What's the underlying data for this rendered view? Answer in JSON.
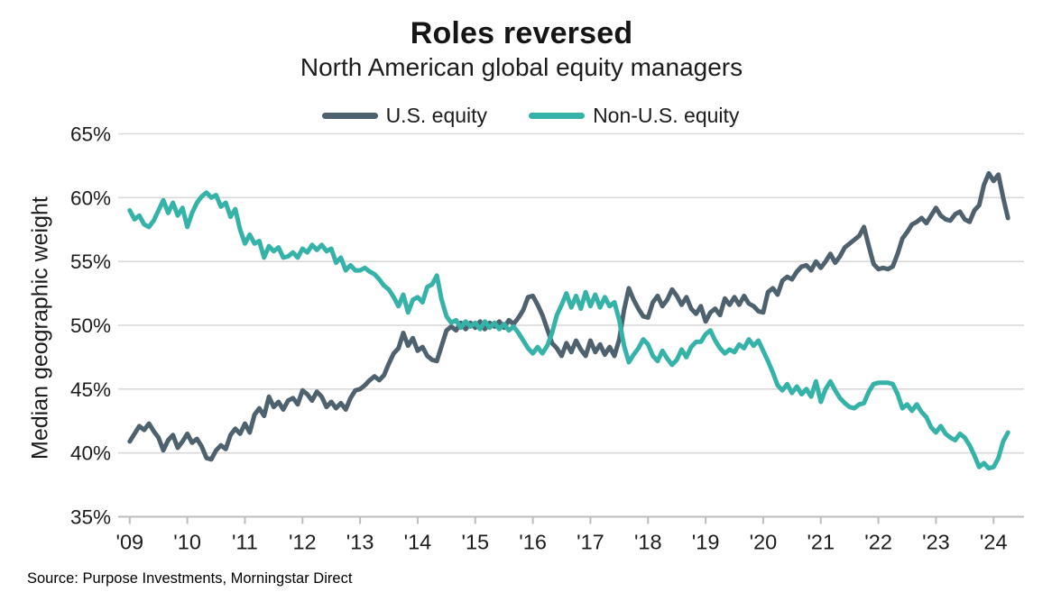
{
  "header": {
    "title": "Roles reversed",
    "subtitle": "North American global equity managers"
  },
  "legend": [
    {
      "label": "U.S. equity",
      "color": "#4e616e"
    },
    {
      "label": "Non-U.S. equity",
      "color": "#35b3a9"
    }
  ],
  "axes": {
    "y_label": "Median geographic weight",
    "y_ticks": [
      "65%",
      "60%",
      "55%",
      "50%",
      "45%",
      "40%",
      "35%"
    ],
    "x_ticks": [
      "'09",
      "'10",
      "'11",
      "'12",
      "'13",
      "'14",
      "'15",
      "'16",
      "'17",
      "'18",
      "'19",
      "'20",
      "'21",
      "'22",
      "'23",
      "'24"
    ]
  },
  "source": "Source: Purpose Investments, Morningstar Direct",
  "colors": {
    "us_equity": "#4e616e",
    "non_us_equity": "#35b3a9",
    "gridline": "#d9d9d9",
    "axis": "#bdbdbd"
  },
  "chart_data": {
    "type": "line",
    "title": "Roles reversed",
    "subtitle": "North American global equity managers",
    "xlabel": "",
    "ylabel": "Median geographic weight",
    "ylim": [
      35,
      65
    ],
    "y_tick_step": 5,
    "grid": "horizontal",
    "legend_position": "top",
    "x_start_year": 2009,
    "frequency": "monthly",
    "x_end_year": 2024.25,
    "x_tick_labels": [
      "'09",
      "'10",
      "'11",
      "'12",
      "'13",
      "'14",
      "'15",
      "'16",
      "'17",
      "'18",
      "'19",
      "'20",
      "'21",
      "'22",
      "'23",
      "'24"
    ],
    "units": "percent",
    "series": [
      {
        "name": "U.S. equity",
        "color": "#4e616e",
        "values": [
          40.9,
          41.5,
          42.1,
          41.8,
          42.3,
          41.7,
          41.2,
          40.2,
          41.0,
          41.4,
          40.4,
          40.9,
          41.5,
          40.8,
          41.1,
          40.5,
          39.6,
          39.5,
          40.2,
          40.6,
          40.3,
          41.4,
          41.9,
          41.5,
          42.3,
          41.6,
          43.0,
          43.5,
          42.9,
          44.4,
          43.6,
          44.0,
          43.4,
          44.1,
          44.3,
          43.8,
          44.9,
          44.6,
          44.1,
          44.8,
          44.4,
          43.6,
          44.0,
          43.5,
          43.9,
          43.4,
          44.3,
          44.9,
          45.0,
          45.3,
          45.7,
          46.0,
          45.7,
          46.1,
          47.0,
          47.8,
          48.2,
          49.4,
          48.4,
          49.0,
          48.0,
          48.3,
          47.6,
          47.3,
          47.2,
          48.4,
          49.6,
          49.9,
          49.6,
          50.2,
          49.7,
          50.2,
          49.8,
          50.3,
          49.7,
          50.2,
          49.9,
          50.3,
          49.8,
          50.4,
          50.1,
          50.6,
          51.2,
          52.2,
          52.3,
          51.6,
          50.8,
          49.7,
          48.6,
          48.2,
          47.6,
          48.6,
          47.9,
          48.8,
          48.1,
          47.6,
          48.8,
          47.9,
          48.5,
          47.7,
          48.3,
          47.6,
          48.9,
          51.2,
          52.9,
          52.0,
          51.3,
          50.7,
          50.6,
          51.8,
          52.3,
          51.5,
          52.0,
          52.8,
          52.3,
          51.6,
          52.2,
          51.3,
          50.9,
          51.5,
          50.3,
          51.0,
          51.3,
          50.8,
          52.1,
          51.6,
          52.2,
          51.6,
          52.3,
          51.7,
          51.5,
          51.1,
          51.0,
          52.6,
          52.9,
          52.4,
          53.5,
          53.8,
          53.6,
          54.2,
          54.6,
          54.7,
          54.3,
          55.0,
          54.5,
          55.0,
          55.6,
          54.9,
          55.4,
          56.1,
          56.4,
          56.7,
          57.0,
          57.7,
          56.2,
          54.8,
          54.4,
          54.5,
          54.4,
          54.6,
          55.6,
          56.8,
          57.3,
          57.9,
          58.1,
          58.4,
          58.0,
          58.6,
          59.2,
          58.6,
          58.3,
          58.2,
          58.7,
          58.9,
          58.3,
          58.1,
          59.0,
          59.4,
          61.0,
          61.9,
          61.3,
          61.8,
          60.0,
          58.4
        ]
      },
      {
        "name": "Non-U.S. equity",
        "color": "#35b3a9",
        "values": [
          59.0,
          58.3,
          58.6,
          57.9,
          57.7,
          58.2,
          59.0,
          59.8,
          58.8,
          59.6,
          58.6,
          59.2,
          57.7,
          58.8,
          59.6,
          60.1,
          60.4,
          60.0,
          60.2,
          59.3,
          59.6,
          58.5,
          59.1,
          57.5,
          56.4,
          57.1,
          56.4,
          56.6,
          55.3,
          56.2,
          55.8,
          56.1,
          55.3,
          55.4,
          55.7,
          55.3,
          56.0,
          55.7,
          56.3,
          55.9,
          56.3,
          55.8,
          56.0,
          54.9,
          55.3,
          54.3,
          54.7,
          54.3,
          54.3,
          54.5,
          54.2,
          54.0,
          53.6,
          53.1,
          52.8,
          52.2,
          51.5,
          52.4,
          51.0,
          52.0,
          52.2,
          51.8,
          53.0,
          53.2,
          53.9,
          52.0,
          50.7,
          50.2,
          50.4,
          49.8,
          50.3,
          49.9,
          50.2,
          49.7,
          50.3,
          49.8,
          50.2,
          49.7,
          50.1,
          49.6,
          49.9,
          49.4,
          48.8,
          48.2,
          47.8,
          48.3,
          47.8,
          48.4,
          49.4,
          50.8,
          51.6,
          52.5,
          51.4,
          52.3,
          51.3,
          52.6,
          51.5,
          52.4,
          51.4,
          52.2,
          51.5,
          51.8,
          50.4,
          48.4,
          47.1,
          47.7,
          48.2,
          48.9,
          48.5,
          47.6,
          47.2,
          48.0,
          47.4,
          46.9,
          47.3,
          48.1,
          47.5,
          48.3,
          48.7,
          48.7,
          49.3,
          49.6,
          48.8,
          48.2,
          47.8,
          48.1,
          47.9,
          48.5,
          48.2,
          48.9,
          48.4,
          48.8,
          48.0,
          47.2,
          46.3,
          45.3,
          44.9,
          45.4,
          44.7,
          45.2,
          44.6,
          45.0,
          44.4,
          45.6,
          44.0,
          45.0,
          45.6,
          44.9,
          44.3,
          43.9,
          43.6,
          43.5,
          43.8,
          43.9,
          44.8,
          45.4,
          45.5,
          45.5,
          45.5,
          45.4,
          44.6,
          43.5,
          43.8,
          43.3,
          43.8,
          43.2,
          42.8,
          42.0,
          41.6,
          42.1,
          41.5,
          41.2,
          41.0,
          41.5,
          41.2,
          40.6,
          39.8,
          38.9,
          39.2,
          38.8,
          38.9,
          39.6,
          40.9,
          41.6
        ]
      }
    ]
  }
}
